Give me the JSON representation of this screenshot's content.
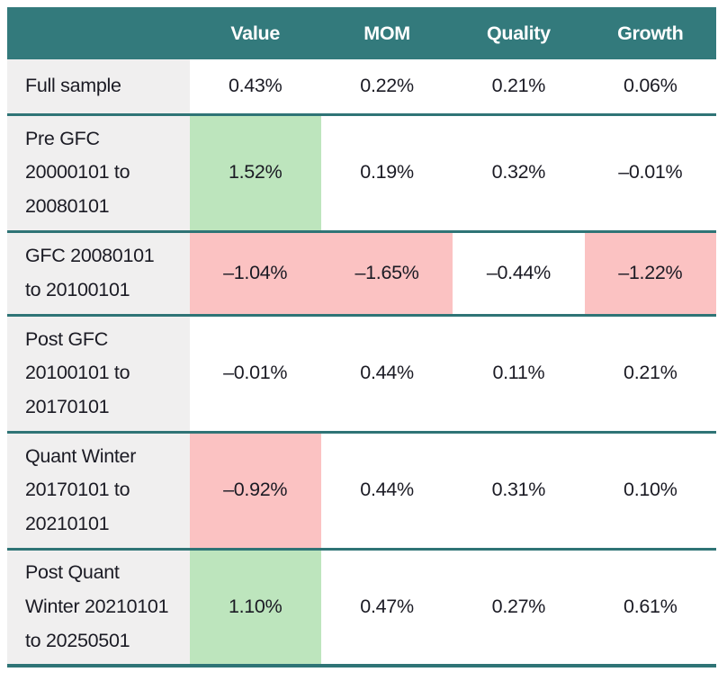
{
  "table": {
    "columns": {
      "corner": "",
      "col1": "Value",
      "col2": "MOM",
      "col3": "Quality",
      "col4": "Growth"
    },
    "rows": [
      {
        "label": "Full sample",
        "values": [
          "0.43%",
          "0.22%",
          "0.21%",
          "0.06%"
        ],
        "highlights": [
          "none",
          "none",
          "none",
          "none"
        ]
      },
      {
        "label": "Pre GFC 20000101 to 20080101",
        "values": [
          "1.52%",
          "0.19%",
          "0.32%",
          "–0.01%"
        ],
        "highlights": [
          "green",
          "none",
          "none",
          "none"
        ]
      },
      {
        "label": "GFC 20080101 to 20100101",
        "values": [
          "–1.04%",
          "–1.65%",
          "–0.44%",
          "–1.22%"
        ],
        "highlights": [
          "red",
          "red",
          "none",
          "red"
        ]
      },
      {
        "label": "Post GFC 20100101 to 20170101",
        "values": [
          "–0.01%",
          "0.44%",
          "0.11%",
          "0.21%"
        ],
        "highlights": [
          "none",
          "none",
          "none",
          "none"
        ]
      },
      {
        "label": "Quant Winter 20170101 to 20210101",
        "values": [
          "–0.92%",
          "0.44%",
          "0.31%",
          "0.10%"
        ],
        "highlights": [
          "red",
          "none",
          "none",
          "none"
        ]
      },
      {
        "label": "Post Quant Winter 20210101 to 20250501",
        "values": [
          "1.10%",
          "0.47%",
          "0.27%",
          "0.61%"
        ],
        "highlights": [
          "green",
          "none",
          "none",
          "none"
        ]
      }
    ]
  },
  "colors": {
    "header_bg": "#337a7c",
    "rule": "#2f7476",
    "positive_cell_bg": "#bde5bd",
    "negative_cell_bg": "#fbc2c2",
    "label_column_bg": "#f0efef",
    "text": "#1b1b24",
    "header_text": "#ffffff"
  },
  "chart_data": {
    "type": "table",
    "title": "",
    "columns": [
      "",
      "Value",
      "MOM",
      "Quality",
      "Growth"
    ],
    "rows": [
      [
        "Full sample",
        "0.43%",
        "0.22%",
        "0.21%",
        "0.06%"
      ],
      [
        "Pre GFC 20000101 to 20080101",
        "1.52%",
        "0.19%",
        "0.32%",
        "–0.01%"
      ],
      [
        "GFC 20080101 to 20100101",
        "–1.04%",
        "–1.65%",
        "–0.44%",
        "–1.22%"
      ],
      [
        "Post GFC 20100101 to 20170101",
        "–0.01%",
        "0.44%",
        "0.11%",
        "0.21%"
      ],
      [
        "Quant Winter 20170101 to 20210101",
        "–0.92%",
        "0.44%",
        "0.31%",
        "0.10%"
      ],
      [
        "Post Quant Winter 20210101 to 20250501",
        "1.10%",
        "0.47%",
        "0.27%",
        "0.61%"
      ]
    ],
    "cell_highlights": {
      "green": [
        [
          "Pre GFC 20000101 to 20080101",
          "Value"
        ],
        [
          "Post Quant Winter 20210101 to 20250501",
          "Value"
        ]
      ],
      "red": [
        [
          "GFC 20080101 to 20100101",
          "Value"
        ],
        [
          "GFC 20080101 to 20100101",
          "MOM"
        ],
        [
          "GFC 20080101 to 20100101",
          "Growth"
        ],
        [
          "Quant Winter 20170101 to 20210101",
          "Value"
        ]
      ]
    }
  }
}
